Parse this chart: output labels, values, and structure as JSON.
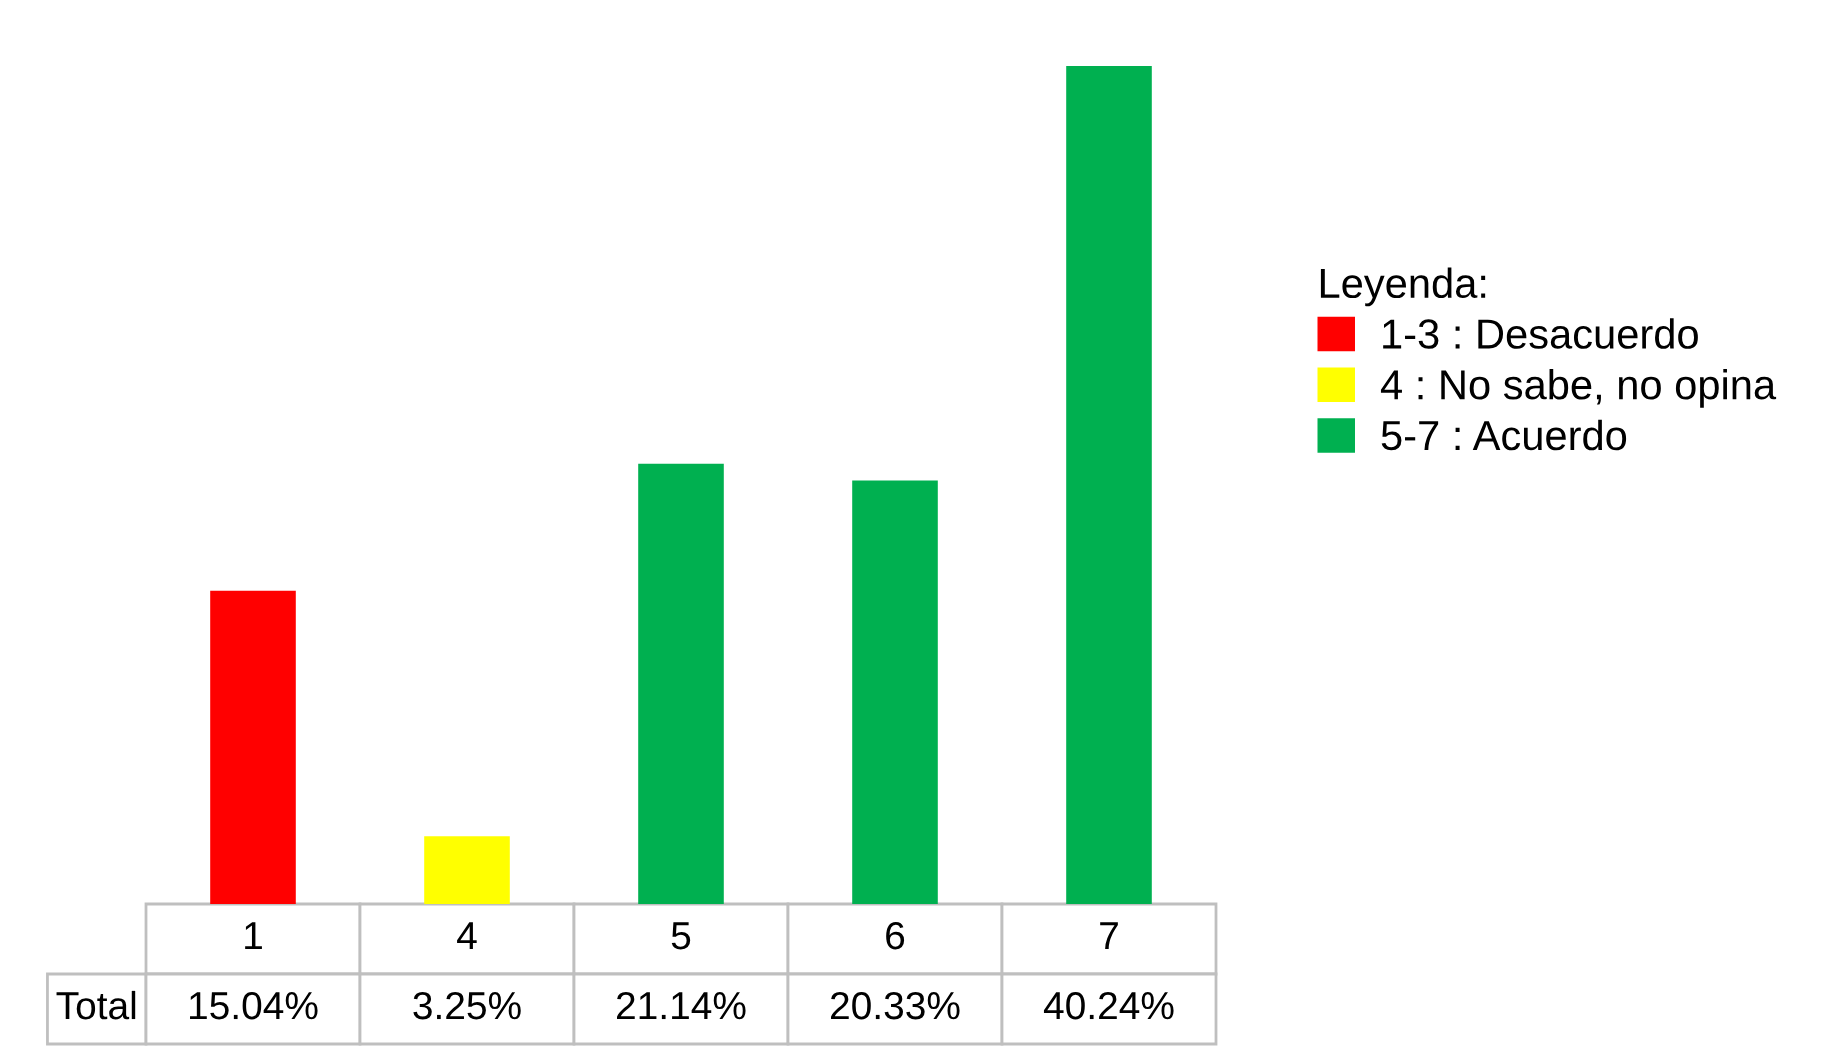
{
  "chart_data": {
    "type": "bar",
    "categories": [
      "1",
      "4",
      "5",
      "6",
      "7"
    ],
    "legend": "right",
    "legend_title": "Leyenda:",
    "series": [
      {
        "name": "1-3 : Desacuerdo",
        "color": "#ff0000",
        "values": [
          15.04,
          null,
          null,
          null,
          null
        ],
        "value_labels": [
          "15.04%",
          null,
          null,
          null,
          null
        ]
      },
      {
        "name": "4 : No sabe, no opina",
        "color": "#ffff00",
        "values": [
          null,
          3.25,
          null,
          null,
          null
        ],
        "value_labels": [
          null,
          "3.25%",
          null,
          null,
          null
        ]
      },
      {
        "name": "5-7 : Acuerdo",
        "color": "#00b050",
        "values": [
          null,
          null,
          21.14,
          20.33,
          40.24
        ],
        "value_labels": [
          null,
          null,
          "21.14%",
          "20.33%",
          "40.24%"
        ]
      }
    ],
    "annotations": [
      "Total"
    ]
  }
}
